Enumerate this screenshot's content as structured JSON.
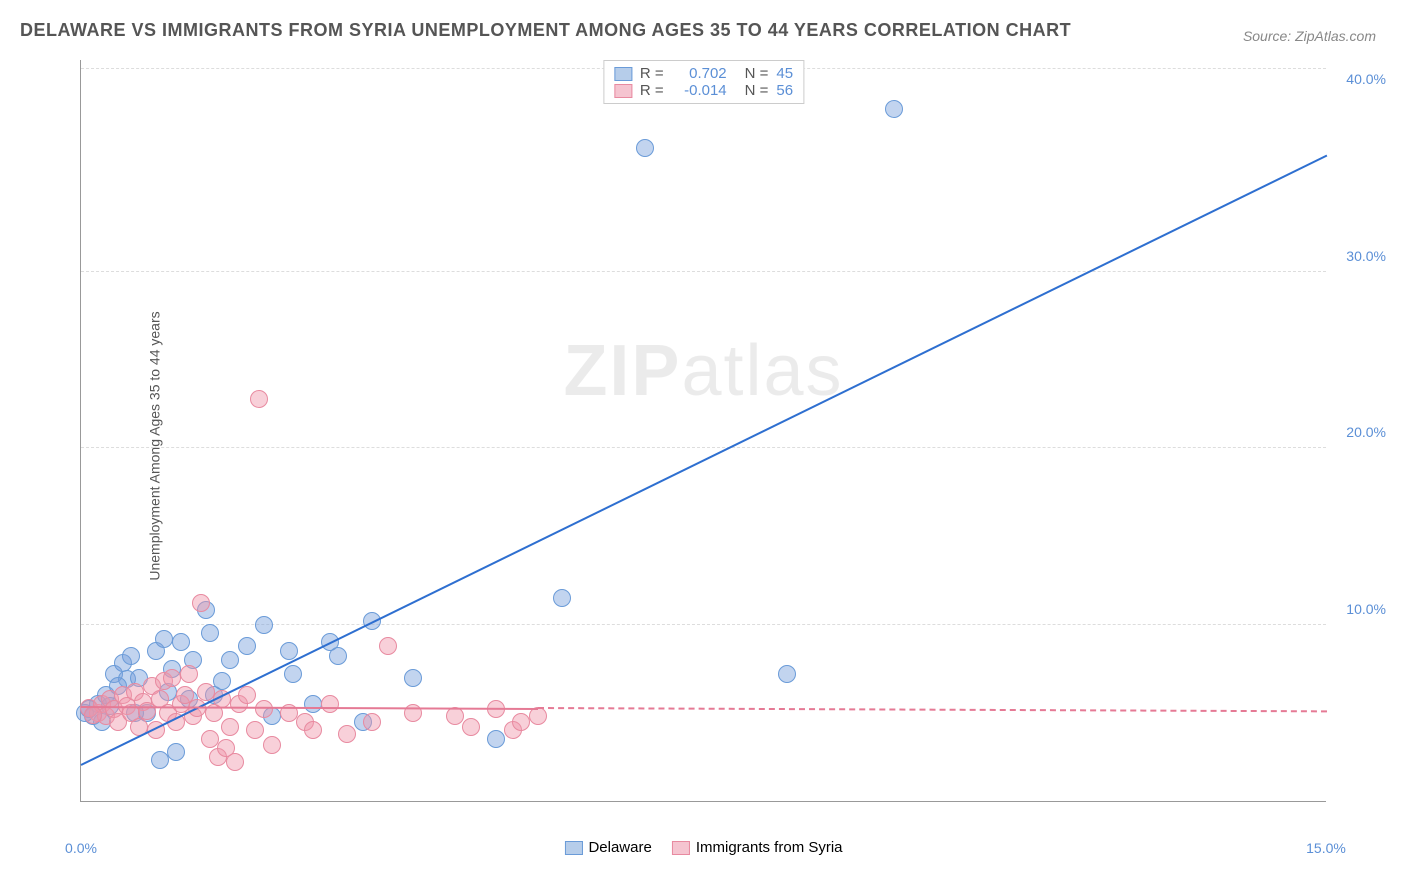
{
  "title": "DELAWARE VS IMMIGRANTS FROM SYRIA UNEMPLOYMENT AMONG AGES 35 TO 44 YEARS CORRELATION CHART",
  "source": "Source: ZipAtlas.com",
  "watermark_bold": "ZIP",
  "watermark_light": "atlas",
  "y_axis_label": "Unemployment Among Ages 35 to 44 years",
  "chart": {
    "type": "scatter",
    "xlim": [
      0,
      15
    ],
    "ylim": [
      0,
      42
    ],
    "x_ticks": [
      {
        "v": 0,
        "label": "0.0%"
      },
      {
        "v": 15,
        "label": "15.0%"
      }
    ],
    "y_ticks": [
      {
        "v": 10,
        "label": "10.0%"
      },
      {
        "v": 20,
        "label": "20.0%"
      },
      {
        "v": 30,
        "label": "30.0%"
      },
      {
        "v": 40,
        "label": "40.0%"
      }
    ],
    "grid_lines_y": [
      10,
      20,
      30,
      41.5
    ],
    "grid_color": "#dddddd",
    "tick_color_blue": "#5b8fd6",
    "marker_radius": 9,
    "series": [
      {
        "name": "Delaware",
        "color_fill": "rgba(120,160,220,0.45)",
        "color_stroke": "#6a9bd8",
        "legend_box_fill": "#b6cdea",
        "legend_box_stroke": "#6a9bd8",
        "R": "0.702",
        "N": "45",
        "trend": {
          "x1": 0,
          "y1": 2.0,
          "x2": 15,
          "y2": 36.5,
          "color": "#2e6fd0",
          "dashed_after_x": null
        },
        "points": [
          [
            0.1,
            5.2
          ],
          [
            0.2,
            5.5
          ],
          [
            0.15,
            4.8
          ],
          [
            0.3,
            6.0
          ],
          [
            0.35,
            5.4
          ],
          [
            0.4,
            7.2
          ],
          [
            0.5,
            7.8
          ],
          [
            0.55,
            6.9
          ],
          [
            0.6,
            8.2
          ],
          [
            0.7,
            7.0
          ],
          [
            0.8,
            5.0
          ],
          [
            0.9,
            8.5
          ],
          [
            1.0,
            9.2
          ],
          [
            1.05,
            6.2
          ],
          [
            1.1,
            7.5
          ],
          [
            1.2,
            9.0
          ],
          [
            1.3,
            5.8
          ],
          [
            1.5,
            10.8
          ],
          [
            1.55,
            9.5
          ],
          [
            1.8,
            8.0
          ],
          [
            2.0,
            8.8
          ],
          [
            2.2,
            10.0
          ],
          [
            2.3,
            4.8
          ],
          [
            2.5,
            8.5
          ],
          [
            2.55,
            7.2
          ],
          [
            3.0,
            9.0
          ],
          [
            3.1,
            8.2
          ],
          [
            3.4,
            4.5
          ],
          [
            3.5,
            10.2
          ],
          [
            4.0,
            7.0
          ],
          [
            5.0,
            3.5
          ],
          [
            5.8,
            11.5
          ],
          [
            0.95,
            2.3
          ],
          [
            1.15,
            2.8
          ],
          [
            6.8,
            37.0
          ],
          [
            8.5,
            7.2
          ],
          [
            9.8,
            39.2
          ],
          [
            1.6,
            6.0
          ],
          [
            0.25,
            4.5
          ],
          [
            0.45,
            6.5
          ],
          [
            0.65,
            5.0
          ],
          [
            1.35,
            8.0
          ],
          [
            1.7,
            6.8
          ],
          [
            2.8,
            5.5
          ],
          [
            0.05,
            5.0
          ]
        ]
      },
      {
        "name": "Immigrants from Syria",
        "color_fill": "rgba(240,150,170,0.45)",
        "color_stroke": "#e88aa0",
        "legend_box_fill": "#f5c4d0",
        "legend_box_stroke": "#e88aa0",
        "R": "-0.014",
        "N": "56",
        "trend": {
          "x1": 0,
          "y1": 5.3,
          "x2": 15,
          "y2": 5.0,
          "color": "#e57a95",
          "dashed_after_x": 5.5
        },
        "points": [
          [
            0.1,
            5.3
          ],
          [
            0.2,
            5.0
          ],
          [
            0.25,
            5.5
          ],
          [
            0.3,
            4.8
          ],
          [
            0.35,
            5.8
          ],
          [
            0.4,
            5.2
          ],
          [
            0.45,
            4.5
          ],
          [
            0.5,
            6.0
          ],
          [
            0.55,
            5.4
          ],
          [
            0.6,
            5.0
          ],
          [
            0.65,
            6.2
          ],
          [
            0.7,
            4.2
          ],
          [
            0.75,
            5.6
          ],
          [
            0.8,
            5.1
          ],
          [
            0.85,
            6.5
          ],
          [
            0.9,
            4.0
          ],
          [
            0.95,
            5.8
          ],
          [
            1.0,
            6.8
          ],
          [
            1.05,
            5.0
          ],
          [
            1.1,
            7.0
          ],
          [
            1.15,
            4.5
          ],
          [
            1.2,
            5.5
          ],
          [
            1.25,
            6.0
          ],
          [
            1.3,
            7.2
          ],
          [
            1.35,
            4.8
          ],
          [
            1.4,
            5.3
          ],
          [
            1.45,
            11.2
          ],
          [
            1.5,
            6.2
          ],
          [
            1.55,
            3.5
          ],
          [
            1.6,
            5.0
          ],
          [
            1.65,
            2.5
          ],
          [
            1.7,
            5.8
          ],
          [
            1.75,
            3.0
          ],
          [
            1.8,
            4.2
          ],
          [
            1.85,
            2.2
          ],
          [
            1.9,
            5.5
          ],
          [
            2.0,
            6.0
          ],
          [
            2.1,
            4.0
          ],
          [
            2.2,
            5.2
          ],
          [
            2.15,
            22.8
          ],
          [
            2.3,
            3.2
          ],
          [
            2.5,
            5.0
          ],
          [
            2.7,
            4.5
          ],
          [
            2.8,
            4.0
          ],
          [
            3.0,
            5.5
          ],
          [
            3.2,
            3.8
          ],
          [
            3.5,
            4.5
          ],
          [
            3.7,
            8.8
          ],
          [
            4.0,
            5.0
          ],
          [
            4.5,
            4.8
          ],
          [
            4.7,
            4.2
          ],
          [
            5.0,
            5.2
          ],
          [
            5.2,
            4.0
          ],
          [
            5.3,
            4.5
          ],
          [
            5.5,
            4.8
          ],
          [
            0.15,
            4.9
          ]
        ]
      }
    ]
  },
  "legend_top": {
    "R_label": "R  =",
    "N_label": "N  ="
  },
  "legend_bottom": [
    {
      "label": "Delaware",
      "fill": "#b6cdea",
      "stroke": "#6a9bd8"
    },
    {
      "label": "Immigrants from Syria",
      "fill": "#f5c4d0",
      "stroke": "#e88aa0"
    }
  ]
}
